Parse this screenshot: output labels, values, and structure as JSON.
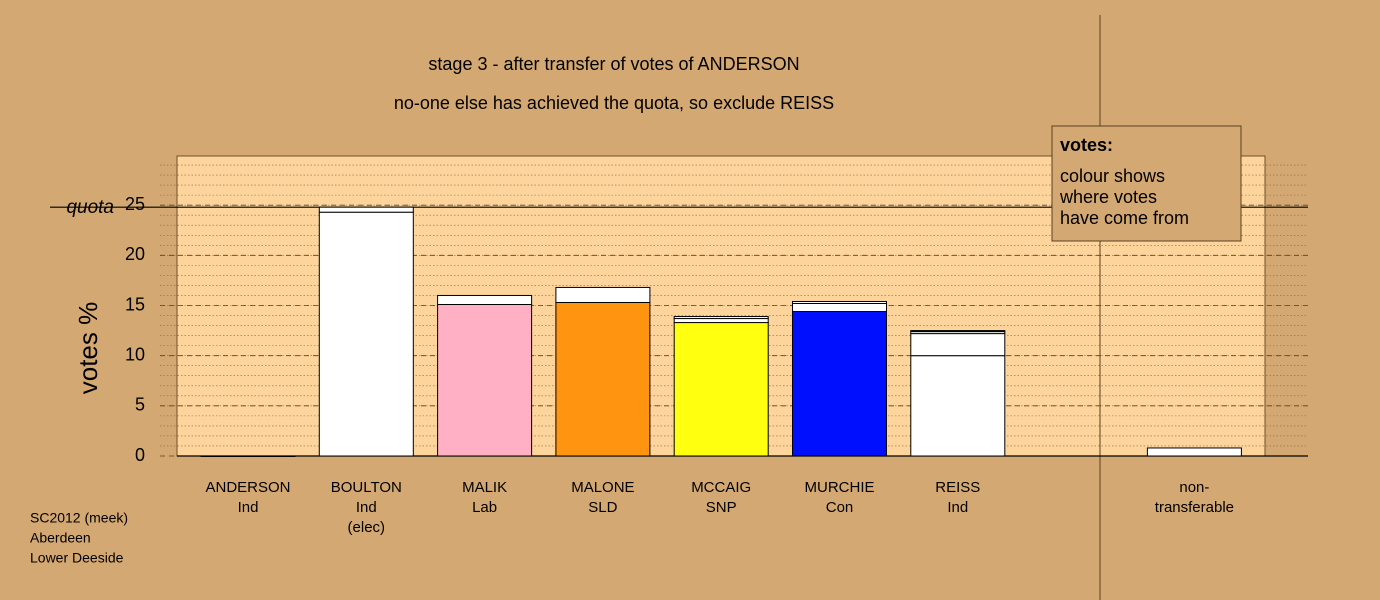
{
  "chart_data": {
    "type": "stacked-bar",
    "title": [
      "stage 3 - after transfer of votes of ANDERSON",
      "no-one else has achieved the quota, so exclude REISS"
    ],
    "ylabel": "votes %",
    "quota": {
      "value": 24.8,
      "label": "quota"
    },
    "ylim": [
      0,
      30
    ],
    "yticks": [
      0,
      5,
      10,
      15,
      20,
      25
    ],
    "minor_grid_step": 1,
    "bars": [
      {
        "label": [
          "ANDERSON",
          "Ind"
        ],
        "values": [
          0
        ],
        "colors": [
          "#ffffff"
        ]
      },
      {
        "label": [
          "BOULTON",
          "Ind",
          "(elec)"
        ],
        "values": [
          24.3,
          0.5
        ],
        "colors": [
          "#ffffff",
          "#ffffff"
        ]
      },
      {
        "label": [
          "MALIK",
          "Lab"
        ],
        "values": [
          15.1,
          0.9
        ],
        "colors": [
          "#ffb0c4",
          "#ffffff"
        ]
      },
      {
        "label": [
          "MALONE",
          "SLD"
        ],
        "values": [
          15.3,
          1.5
        ],
        "colors": [
          "#ff9410",
          "#ffffff"
        ]
      },
      {
        "label": [
          "MCCAIG",
          "SNP"
        ],
        "values": [
          13.3,
          0.4,
          0.2
        ],
        "colors": [
          "#ffff10",
          "#ffffff",
          "#ffffff"
        ]
      },
      {
        "label": [
          "MURCHIE",
          "Con"
        ],
        "values": [
          14.4,
          0.8,
          0.2
        ],
        "colors": [
          "#0010ff",
          "#ffffff",
          "#ffffff"
        ]
      },
      {
        "label": [
          "REISS",
          "Ind"
        ],
        "values": [
          10.0,
          2.2,
          0.2,
          0.1
        ],
        "colors": [
          "#ffffff",
          "#ffffff",
          "#ffffff",
          "#ffffff"
        ]
      },
      {
        "label": [
          "non-",
          "transferable"
        ],
        "values": [
          0.8
        ],
        "colors": [
          "#ffffff"
        ]
      }
    ],
    "legend": {
      "title": "votes:",
      "lines": [
        "colour shows",
        "where votes",
        "have come from"
      ]
    },
    "footer": [
      "SC2012 (meek)",
      "Aberdeen",
      "Lower Deeside"
    ]
  }
}
